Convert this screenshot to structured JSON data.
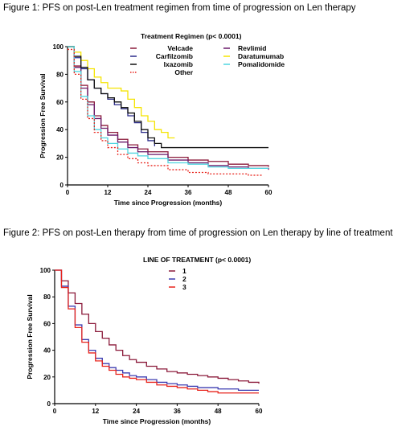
{
  "captions": {
    "fig1": "Figure 1: PFS on post-Len treatment regimen from time of progression on Len therapy",
    "fig2": "Figure 2: PFS on post-Len therapy from time of progression on Len therapy by line of treatment"
  },
  "chart_data": [
    {
      "type": "line",
      "title": "Figure 1: PFS on post-Len treatment regimen from time of progression on Len therapy",
      "legend_title": "Treatment Regimen (p< 0.0001)",
      "legend_position": "top-right",
      "xlabel": "Time since Progression (months)",
      "ylabel": "Progression Free Survival",
      "xlim": [
        0,
        60
      ],
      "ylim": [
        0,
        100
      ],
      "xticks": [
        0,
        12,
        24,
        36,
        48,
        60
      ],
      "yticks": [
        0,
        20,
        40,
        60,
        80,
        100
      ],
      "grid": false,
      "step": true,
      "series": [
        {
          "name": "Velcade",
          "color": "#8b1a3a",
          "dash": false,
          "x": [
            0,
            2,
            4,
            6,
            8,
            10,
            12,
            15,
            18,
            21,
            24,
            30,
            36,
            42,
            48,
            54,
            60
          ],
          "y": [
            100,
            86,
            72,
            60,
            50,
            43,
            38,
            33,
            29,
            26,
            24,
            20,
            18,
            17,
            15,
            14,
            13
          ]
        },
        {
          "name": "Revlimid",
          "color": "#6a1a6a",
          "dash": false,
          "x": [
            0,
            2,
            4,
            6,
            8,
            10,
            12,
            15,
            18,
            21,
            24,
            30,
            36,
            42,
            48,
            54,
            60
          ],
          "y": [
            100,
            85,
            70,
            58,
            48,
            41,
            36,
            31,
            27,
            24,
            22,
            18,
            16,
            14,
            13,
            12,
            11
          ]
        },
        {
          "name": "Carfilzomib",
          "color": "#2b2b8a",
          "dash": false,
          "x": [
            0,
            2,
            4,
            6,
            8,
            10,
            12,
            14,
            16,
            18,
            20,
            22,
            24,
            26
          ],
          "y": [
            100,
            92,
            84,
            76,
            70,
            66,
            62,
            58,
            55,
            50,
            45,
            38,
            32,
            28
          ]
        },
        {
          "name": "Daratumumab",
          "color": "#f5e400",
          "dash": false,
          "x": [
            0,
            2,
            4,
            6,
            8,
            10,
            12,
            14,
            16,
            18,
            20,
            22,
            24,
            26,
            28,
            30,
            32
          ],
          "y": [
            100,
            96,
            90,
            84,
            78,
            74,
            70,
            70,
            68,
            62,
            56,
            50,
            46,
            40,
            38,
            34,
            34
          ]
        },
        {
          "name": "Ixazomib",
          "color": "#111111",
          "dash": false,
          "x": [
            0,
            2,
            4,
            6,
            8,
            10,
            12,
            14,
            16,
            18,
            20,
            22,
            24,
            26,
            28,
            60
          ],
          "y": [
            100,
            93,
            85,
            76,
            70,
            66,
            63,
            60,
            56,
            52,
            46,
            40,
            34,
            30,
            27,
            27
          ]
        },
        {
          "name": "Pomalidomide",
          "color": "#4fd6e0",
          "dash": false,
          "x": [
            0,
            2,
            4,
            6,
            8,
            10,
            12,
            15,
            18,
            21,
            24,
            30,
            36,
            42,
            48,
            54,
            60
          ],
          "y": [
            100,
            82,
            64,
            50,
            40,
            34,
            30,
            26,
            23,
            21,
            19,
            16,
            15,
            13,
            12,
            12,
            12
          ]
        },
        {
          "name": "Other",
          "color": "#e8241c",
          "dash": true,
          "x": [
            0,
            2,
            4,
            6,
            8,
            10,
            12,
            15,
            18,
            21,
            24,
            30,
            36,
            42,
            48,
            54,
            58
          ],
          "y": [
            98,
            80,
            62,
            48,
            38,
            32,
            27,
            22,
            19,
            16,
            14,
            11,
            9,
            8,
            8,
            7,
            7
          ]
        }
      ]
    },
    {
      "type": "line",
      "title": "Figure 2: PFS on post-Len therapy from time of progression on Len therapy by line of treatment",
      "legend_title": "LINE OF TREATMENT (p< 0.0001)",
      "legend_position": "top-right",
      "xlabel": "Time since Progression (months)",
      "ylabel": "Progression Free Survival",
      "xlim": [
        0,
        60
      ],
      "ylim": [
        0,
        100
      ],
      "xticks": [
        0,
        12,
        24,
        36,
        48,
        60
      ],
      "yticks": [
        0,
        20,
        40,
        60,
        80,
        100
      ],
      "grid": false,
      "step": true,
      "series": [
        {
          "name": "1",
          "color": "#8b1a3a",
          "dash": false,
          "x": [
            0,
            2,
            4,
            6,
            8,
            10,
            12,
            14,
            16,
            18,
            20,
            22,
            24,
            27,
            30,
            33,
            36,
            39,
            42,
            45,
            48,
            51,
            54,
            57,
            60
          ],
          "y": [
            100,
            92,
            83,
            75,
            67,
            60,
            54,
            49,
            44,
            40,
            36,
            33,
            31,
            28,
            26,
            24,
            23,
            22,
            21,
            20,
            19,
            18,
            17,
            16,
            15
          ]
        },
        {
          "name": "2",
          "color": "#3b3bb0",
          "dash": false,
          "x": [
            0,
            2,
            4,
            6,
            8,
            10,
            12,
            14,
            16,
            18,
            20,
            22,
            24,
            27,
            30,
            33,
            36,
            39,
            42,
            45,
            48,
            51,
            54,
            57,
            60
          ],
          "y": [
            100,
            88,
            73,
            59,
            48,
            40,
            34,
            30,
            27,
            25,
            23,
            21,
            20,
            18,
            16,
            15,
            14,
            13,
            12,
            12,
            11,
            11,
            10,
            10,
            10
          ]
        },
        {
          "name": "3",
          "color": "#e8241c",
          "dash": false,
          "x": [
            0,
            2,
            4,
            6,
            8,
            10,
            12,
            14,
            16,
            18,
            20,
            22,
            24,
            27,
            30,
            33,
            36,
            39,
            42,
            45,
            48,
            51,
            54,
            57,
            60
          ],
          "y": [
            100,
            87,
            71,
            57,
            46,
            38,
            32,
            28,
            25,
            22,
            20,
            19,
            18,
            16,
            14,
            13,
            12,
            11,
            10,
            9,
            8,
            8,
            8,
            8,
            8
          ]
        }
      ]
    }
  ]
}
